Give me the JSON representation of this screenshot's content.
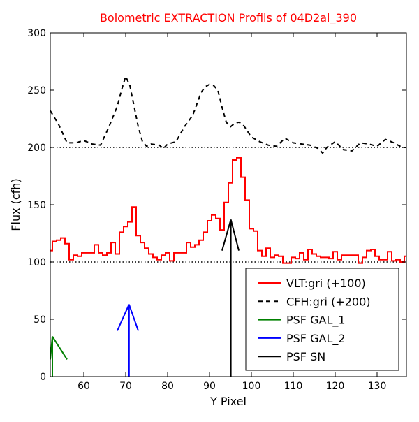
{
  "chart_data": {
    "type": "line",
    "title": "Bolometric EXTRACTION Profils of 04D2al_390",
    "xlabel": "Y Pixel",
    "ylabel": "Flux (cfh)",
    "xlim": [
      52,
      137
    ],
    "ylim": [
      0,
      300
    ],
    "xticks": [
      60,
      70,
      80,
      90,
      100,
      110,
      120,
      130
    ],
    "yticks": [
      0,
      50,
      100,
      150,
      200,
      250,
      300
    ],
    "grid": false,
    "legend_position": "lower-right",
    "colors": {
      "title": "#ff0000",
      "vlt": "#ff0000",
      "cfh": "#000000",
      "gal1": "#008000",
      "gal2": "#0000ff",
      "sn": "#000000"
    },
    "reference_lines": [
      {
        "y": 100,
        "style": "dotted",
        "color": "#000000"
      },
      {
        "y": 200,
        "style": "dotted",
        "color": "#000000"
      }
    ],
    "series": [
      {
        "name": "VLT:gri (+100)",
        "style": "steps-solid",
        "color": "#ff0000",
        "x": [
          52,
          53,
          54,
          55,
          56,
          57,
          58,
          59,
          60,
          61,
          62,
          63,
          64,
          65,
          66,
          67,
          68,
          69,
          70,
          71,
          72,
          73,
          74,
          75,
          76,
          77,
          78,
          79,
          80,
          81,
          82,
          83,
          84,
          85,
          86,
          87,
          88,
          89,
          90,
          91,
          92,
          93,
          94,
          95,
          96,
          97,
          98,
          99,
          100,
          101,
          102,
          103,
          104,
          105,
          106,
          107,
          108,
          109,
          110,
          111,
          112,
          113,
          114,
          115,
          116,
          117,
          118,
          119,
          120,
          121,
          122,
          123,
          124,
          125,
          126,
          127,
          128,
          129,
          130,
          131,
          132,
          133,
          134,
          135,
          136,
          137
        ],
        "y": [
          110,
          118,
          119,
          121,
          116,
          102,
          106,
          105,
          108,
          108,
          108,
          115,
          108,
          106,
          108,
          117,
          107,
          126,
          131,
          135,
          148,
          123,
          117,
          112,
          107,
          104,
          102,
          106,
          108,
          101,
          108,
          108,
          108,
          117,
          113,
          115,
          119,
          126,
          136,
          141,
          138,
          128,
          152,
          169,
          189,
          191,
          174,
          154,
          129,
          127,
          110,
          105,
          112,
          104,
          106,
          105,
          99,
          99,
          104,
          103,
          108,
          102,
          111,
          107,
          105,
          104,
          104,
          103,
          109,
          102,
          106,
          106,
          106,
          106,
          99,
          104,
          110,
          111,
          105,
          102,
          102,
          109,
          101,
          102,
          100,
          105
        ]
      },
      {
        "name": "CFH:gri (+200)",
        "style": "dashed",
        "color": "#000000",
        "x": [
          52,
          54,
          56,
          58,
          60,
          62,
          64,
          66,
          68,
          69,
          70,
          71,
          72,
          73,
          74,
          75,
          76,
          78,
          79,
          80,
          82,
          84,
          86,
          88,
          89,
          90,
          91,
          92,
          93,
          94,
          95,
          96,
          97,
          98,
          100,
          102,
          104,
          106,
          108,
          110,
          112,
          114,
          116,
          117,
          118,
          120,
          122,
          124,
          126,
          128,
          130,
          132,
          134,
          136,
          137
        ],
        "y": [
          232,
          220,
          204,
          204,
          206,
          203,
          202,
          218,
          236,
          250,
          262,
          254,
          236,
          218,
          205,
          201,
          203,
          202,
          199,
          203,
          205,
          218,
          228,
          248,
          253,
          255,
          254,
          250,
          235,
          222,
          218,
          221,
          222,
          220,
          209,
          205,
          202,
          201,
          208,
          204,
          203,
          202,
          199,
          195,
          200,
          205,
          198,
          197,
          204,
          203,
          201,
          207,
          204,
          200,
          200
        ]
      }
    ],
    "psf_markers": [
      {
        "name": "PSF GAL_1",
        "color": "#008000",
        "x": 52.5,
        "peak": 35,
        "left_x": 52.0,
        "right_x": 56.0,
        "arm_y": 15
      },
      {
        "name": "PSF GAL_2",
        "color": "#0000ff",
        "x": 70.8,
        "peak": 63,
        "left_x": 68.0,
        "right_x": 73.0,
        "arm_y": 40
      },
      {
        "name": "PSF SN",
        "color": "#000000",
        "x": 95.1,
        "peak": 137,
        "left_x": 93.0,
        "right_x": 97.0,
        "arm_y": 110
      }
    ]
  }
}
